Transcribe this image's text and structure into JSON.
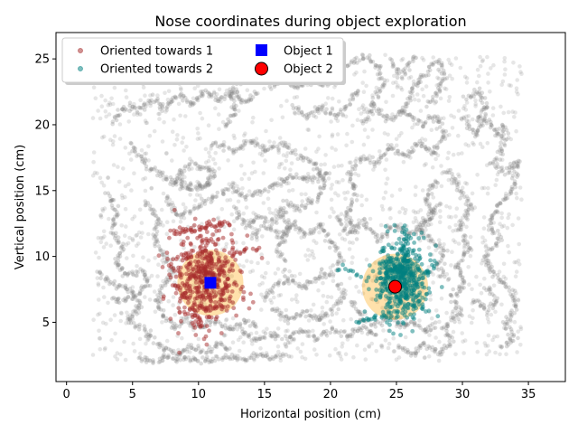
{
  "chart_data": {
    "type": "scatter",
    "title": "Nose coordinates during object exploration",
    "xlabel": "Horizontal position (cm)",
    "ylabel": "Vertical position (cm)",
    "xlim": [
      -0.8,
      37.8
    ],
    "ylim": [
      0.5,
      27.0
    ],
    "xticks": [
      0,
      5,
      10,
      15,
      20,
      25,
      30,
      35
    ],
    "yticks": [
      5,
      10,
      15,
      20,
      25
    ],
    "grid": false,
    "legend_position": "top-left",
    "colors": {
      "trajectory": "#808080",
      "oriented1": "#a52a2a",
      "oriented2": "#008080",
      "object1": "#0000ff",
      "object2": "#ff0000",
      "zone": "#ffa500"
    },
    "objects": [
      {
        "name": "Object 1",
        "x": 10.9,
        "y": 8.0,
        "marker": "square",
        "zone_radius_cm": 2.5
      },
      {
        "name": "Object 2",
        "x": 24.9,
        "y": 7.7,
        "marker": "circle",
        "zone_radius_cm": 2.5
      }
    ],
    "series": [
      {
        "name": "Oriented towards 1",
        "marker": "circle",
        "center": [
          10.5,
          8.3
        ],
        "approx_points": 500
      },
      {
        "name": "Oriented towards 2",
        "marker": "circle",
        "center": [
          25.3,
          8.2
        ],
        "approx_points": 500
      },
      {
        "name": "Object 1",
        "marker": "square"
      },
      {
        "name": "Object 2",
        "marker": "circle"
      }
    ],
    "trajectory": {
      "x_range": [
        2.0,
        34.5
      ],
      "y_range": [
        2.0,
        25.3
      ],
      "segments": [
        [
          [
            4.9,
            18.5
          ],
          [
            6.0,
            17.0
          ],
          [
            7.5,
            16.0
          ],
          [
            9.0,
            15.5
          ],
          [
            10.5,
            15.3
          ],
          [
            11.2,
            16.4
          ],
          [
            9.5,
            17.0
          ],
          [
            8.0,
            15.6
          ],
          [
            9.5,
            15.0
          ],
          [
            11.0,
            15.7
          ]
        ],
        [
          [
            7.5,
            14.5
          ],
          [
            8.5,
            13.0
          ],
          [
            10.0,
            13.8
          ],
          [
            11.5,
            14.8
          ],
          [
            12.5,
            15.2
          ],
          [
            13.5,
            14.5
          ],
          [
            14.8,
            15.0
          ],
          [
            16.0,
            15.5
          ],
          [
            17.2,
            16.2
          ],
          [
            18.5,
            15.8
          ],
          [
            20.0,
            16.4
          ]
        ],
        [
          [
            3.5,
            20.2
          ],
          [
            4.5,
            21.5
          ],
          [
            5.5,
            21.0
          ],
          [
            6.5,
            22.0
          ],
          [
            7.5,
            21.2
          ],
          [
            8.5,
            22.3
          ],
          [
            9.5,
            21.5
          ],
          [
            10.5,
            22.6
          ],
          [
            11.5,
            21.8
          ],
          [
            12.5,
            22.5
          ],
          [
            13.5,
            21.6
          ],
          [
            14.5,
            22.4
          ]
        ],
        [
          [
            15.5,
            22.8
          ],
          [
            16.5,
            23.6
          ],
          [
            17.5,
            22.7
          ],
          [
            18.5,
            23.5
          ],
          [
            19.5,
            22.9
          ],
          [
            20.0,
            23.8
          ],
          [
            21.0,
            24.5
          ],
          [
            22.5,
            25.2
          ],
          [
            23.6,
            24.6
          ],
          [
            24.0,
            23.0
          ],
          [
            23.0,
            21.5
          ]
        ],
        [
          [
            3.2,
            14.8
          ],
          [
            3.7,
            13.2
          ],
          [
            3.5,
            12.0
          ],
          [
            4.2,
            10.5
          ],
          [
            3.7,
            9.5
          ],
          [
            4.5,
            8.5
          ],
          [
            5.8,
            8.9
          ],
          [
            6.2,
            7.9
          ],
          [
            5.2,
            7.0
          ],
          [
            4.2,
            6.6
          ],
          [
            3.3,
            6.9
          ]
        ],
        [
          [
            2.4,
            8.8
          ],
          [
            3.5,
            8.0
          ],
          [
            4.8,
            7.5
          ],
          [
            5.6,
            6.2
          ],
          [
            4.6,
            5.2
          ],
          [
            5.8,
            4.6
          ],
          [
            6.6,
            3.8
          ],
          [
            7.4,
            3.0
          ],
          [
            8.5,
            2.5
          ],
          [
            9.4,
            3.2
          ],
          [
            10.5,
            2.6
          ],
          [
            11.5,
            3.4
          ],
          [
            12.5,
            2.7
          ]
        ],
        [
          [
            5.4,
            2.3
          ],
          [
            6.5,
            2.0
          ],
          [
            7.6,
            2.4
          ],
          [
            8.5,
            2.1
          ],
          [
            9.6,
            2.3
          ],
          [
            10.8,
            2.0
          ],
          [
            12.0,
            2.4
          ],
          [
            13.2,
            2.1
          ],
          [
            14.4,
            2.5
          ],
          [
            15.6,
            2.2
          ],
          [
            16.8,
            2.6
          ]
        ],
        [
          [
            13.2,
            4.3
          ],
          [
            14.4,
            3.6
          ],
          [
            15.5,
            4.2
          ],
          [
            16.6,
            3.6
          ],
          [
            17.8,
            4.4
          ],
          [
            19.0,
            3.8
          ],
          [
            20.2,
            4.5
          ],
          [
            21.3,
            3.9
          ],
          [
            22.4,
            4.6
          ],
          [
            23.6,
            4.0
          ]
        ],
        [
          [
            14.0,
            11.6
          ],
          [
            15.2,
            12.3
          ],
          [
            16.0,
            11.5
          ],
          [
            17.2,
            12.5
          ],
          [
            18.2,
            11.6
          ],
          [
            19.2,
            12.4
          ],
          [
            20.0,
            11.3
          ],
          [
            20.8,
            10.0
          ],
          [
            20.2,
            8.8
          ],
          [
            19.0,
            8.4
          ],
          [
            18.0,
            7.6
          ],
          [
            17.0,
            8.3
          ],
          [
            15.8,
            7.8
          ],
          [
            15.0,
            6.6
          ]
        ],
        [
          [
            15.6,
            6.0
          ],
          [
            16.8,
            5.2
          ],
          [
            18.0,
            5.8
          ],
          [
            19.2,
            5.1
          ],
          [
            20.2,
            6.0
          ],
          [
            21.0,
            6.9
          ],
          [
            20.5,
            8.0
          ]
        ],
        [
          [
            22.0,
            11.6
          ],
          [
            21.2,
            13.2
          ],
          [
            21.9,
            14.6
          ],
          [
            21.5,
            16.2
          ],
          [
            22.4,
            17.5
          ],
          [
            23.5,
            17.0
          ],
          [
            24.5,
            18.4
          ],
          [
            25.6,
            17.6
          ],
          [
            26.8,
            18.6
          ],
          [
            27.8,
            17.8
          ],
          [
            28.6,
            19.2
          ],
          [
            28.0,
            20.6
          ],
          [
            26.8,
            20.0
          ],
          [
            25.6,
            21.1
          ],
          [
            24.5,
            20.4
          ],
          [
            23.2,
            21.4
          ],
          [
            22.4,
            20.0
          ]
        ],
        [
          [
            25.5,
            21.0
          ],
          [
            26.2,
            22.6
          ],
          [
            27.0,
            23.8
          ],
          [
            28.0,
            24.8
          ],
          [
            28.6,
            24.0
          ],
          [
            28.2,
            22.6
          ],
          [
            27.4,
            21.5
          ]
        ],
        [
          [
            28.8,
            16.5
          ],
          [
            29.8,
            15.0
          ],
          [
            30.6,
            13.6
          ],
          [
            29.8,
            12.2
          ],
          [
            30.5,
            10.6
          ],
          [
            29.6,
            9.3
          ],
          [
            30.2,
            7.9
          ],
          [
            29.2,
            6.9
          ],
          [
            29.9,
            5.6
          ],
          [
            28.6,
            4.6
          ],
          [
            29.2,
            3.6
          ],
          [
            28.2,
            2.6
          ],
          [
            27.2,
            3.4
          ],
          [
            26.2,
            2.5
          ],
          [
            25.0,
            3.3
          ]
        ],
        [
          [
            28.0,
            15.8
          ],
          [
            27.2,
            14.4
          ],
          [
            27.8,
            13.1
          ],
          [
            26.8,
            12.2
          ],
          [
            27.6,
            11.2
          ],
          [
            28.7,
            10.4
          ],
          [
            28.1,
            9.3
          ],
          [
            28.9,
            8.2
          ]
        ],
        [
          [
            30.2,
            20.4
          ],
          [
            31.0,
            19.2
          ],
          [
            31.8,
            20.5
          ],
          [
            32.6,
            19.3
          ],
          [
            33.2,
            20.0
          ],
          [
            33.0,
            18.0
          ],
          [
            32.3,
            17.1
          ],
          [
            33.4,
            16.4
          ],
          [
            34.2,
            17.3
          ],
          [
            33.8,
            15.0
          ],
          [
            32.8,
            14.0
          ],
          [
            32.0,
            12.6
          ],
          [
            32.8,
            11.2
          ],
          [
            31.6,
            10.0
          ],
          [
            32.4,
            8.6
          ],
          [
            33.6,
            7.6
          ],
          [
            34.1,
            6.2
          ],
          [
            33.2,
            5.0
          ],
          [
            34.0,
            3.8
          ],
          [
            32.8,
            3.0
          ]
        ],
        [
          [
            30.2,
            22.0
          ],
          [
            31.2,
            22.6
          ],
          [
            31.8,
            21.2
          ],
          [
            31.0,
            20.2
          ]
        ],
        [
          [
            30.8,
            6.8
          ],
          [
            31.8,
            5.8
          ],
          [
            32.6,
            6.7
          ],
          [
            31.8,
            7.8
          ]
        ],
        [
          [
            11.0,
            18.6
          ],
          [
            12.6,
            18.0
          ],
          [
            14.0,
            18.8
          ],
          [
            15.2,
            18.0
          ],
          [
            16.2,
            18.6
          ],
          [
            17.6,
            17.6
          ],
          [
            18.8,
            17.0
          ],
          [
            19.6,
            15.6
          ],
          [
            18.8,
            14.2
          ],
          [
            17.6,
            13.6
          ],
          [
            16.4,
            14.2
          ]
        ],
        [
          [
            12.0,
            19.8
          ],
          [
            12.8,
            21.0
          ],
          [
            12.3,
            22.4
          ],
          [
            13.2,
            23.0
          ],
          [
            14.4,
            23.8
          ],
          [
            15.6,
            24.4
          ],
          [
            16.8,
            24.8
          ],
          [
            18.0,
            25.2
          ],
          [
            19.4,
            24.6
          ],
          [
            20.4,
            25.1
          ]
        ],
        [
          [
            6.0,
            14.2
          ],
          [
            7.0,
            12.8
          ],
          [
            6.6,
            11.4
          ],
          [
            7.4,
            10.2
          ],
          [
            8.1,
            9.0
          ],
          [
            7.4,
            7.8
          ],
          [
            6.8,
            6.6
          ],
          [
            7.4,
            5.4
          ],
          [
            8.2,
            4.6
          ],
          [
            9.2,
            5.2
          ],
          [
            10.0,
            4.6
          ],
          [
            11.2,
            5.1
          ],
          [
            12.4,
            4.4
          ],
          [
            13.6,
            5.2
          ],
          [
            14.6,
            4.6
          ]
        ],
        [
          [
            12.6,
            13.6
          ],
          [
            13.6,
            12.3
          ],
          [
            14.6,
            13.1
          ],
          [
            15.6,
            12.6
          ],
          [
            16.4,
            13.6
          ],
          [
            16.8,
            12.0
          ],
          [
            16.0,
            10.6
          ],
          [
            16.6,
            9.6
          ]
        ],
        [
          [
            20.4,
            13.0
          ],
          [
            21.4,
            11.8
          ],
          [
            22.6,
            12.6
          ],
          [
            23.6,
            11.3
          ],
          [
            24.8,
            12.4
          ],
          [
            26.2,
            11.6
          ],
          [
            27.4,
            12.8
          ],
          [
            28.2,
            14.0
          ]
        ],
        [
          [
            11.8,
            24.0
          ],
          [
            12.6,
            25.2
          ],
          [
            13.4,
            24.2
          ],
          [
            14.2,
            25.0
          ]
        ],
        [
          [
            17.2,
            21.4
          ],
          [
            18.2,
            20.6
          ],
          [
            19.2,
            21.4
          ],
          [
            20.6,
            20.6
          ],
          [
            21.6,
            21.8
          ],
          [
            22.2,
            22.8
          ]
        ],
        [
          [
            24.6,
            24.8
          ],
          [
            25.4,
            23.6
          ],
          [
            26.0,
            24.6
          ],
          [
            26.4,
            25.2
          ]
        ],
        [
          [
            21.6,
            6.6
          ],
          [
            22.4,
            5.2
          ],
          [
            23.4,
            4.8
          ],
          [
            24.6,
            5.4
          ],
          [
            25.4,
            4.6
          ],
          [
            26.4,
            5.0
          ],
          [
            27.2,
            4.2
          ],
          [
            28.0,
            5.0
          ]
        ]
      ]
    }
  }
}
